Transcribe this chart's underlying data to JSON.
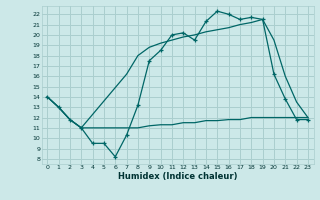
{
  "xlabel": "Humidex (Indice chaleur)",
  "bg_color": "#cce8e8",
  "grid_color": "#aacece",
  "line_color": "#006666",
  "xlim": [
    -0.5,
    23.5
  ],
  "ylim": [
    7.5,
    22.8
  ],
  "xticks": [
    0,
    1,
    2,
    3,
    4,
    5,
    6,
    7,
    8,
    9,
    10,
    11,
    12,
    13,
    14,
    15,
    16,
    17,
    18,
    19,
    20,
    21,
    22,
    23
  ],
  "yticks": [
    8,
    9,
    10,
    11,
    12,
    13,
    14,
    15,
    16,
    17,
    18,
    19,
    20,
    21,
    22
  ],
  "line1_x": [
    0,
    1,
    2,
    3,
    4,
    5,
    6,
    7,
    8,
    9,
    10,
    11,
    12,
    13,
    14,
    15,
    16,
    17,
    18,
    19,
    20,
    21,
    22,
    23
  ],
  "line1_y": [
    14.0,
    13.0,
    11.8,
    11.0,
    9.5,
    9.5,
    8.2,
    10.3,
    13.2,
    17.5,
    18.5,
    20.0,
    20.2,
    19.5,
    21.3,
    22.3,
    22.0,
    21.5,
    21.7,
    21.5,
    16.2,
    13.8,
    11.8,
    11.8
  ],
  "line2_x": [
    0,
    1,
    2,
    3,
    7,
    8,
    9,
    10,
    11,
    12,
    13,
    14,
    15,
    16,
    17,
    18,
    19,
    20,
    21,
    22,
    23
  ],
  "line2_y": [
    14.0,
    13.0,
    11.8,
    11.0,
    11.0,
    11.0,
    11.2,
    11.3,
    11.3,
    11.5,
    11.5,
    11.7,
    11.7,
    11.8,
    11.8,
    12.0,
    12.0,
    12.0,
    12.0,
    12.0,
    12.0
  ],
  "line3_x": [
    0,
    1,
    2,
    3,
    7,
    8,
    9,
    10,
    11,
    12,
    13,
    14,
    15,
    16,
    17,
    18,
    19,
    20,
    21,
    22,
    23
  ],
  "line3_y": [
    14.0,
    13.0,
    11.8,
    11.0,
    16.2,
    18.0,
    18.8,
    19.2,
    19.5,
    19.8,
    20.0,
    20.3,
    20.5,
    20.7,
    21.0,
    21.2,
    21.5,
    19.5,
    16.0,
    13.5,
    12.0
  ]
}
